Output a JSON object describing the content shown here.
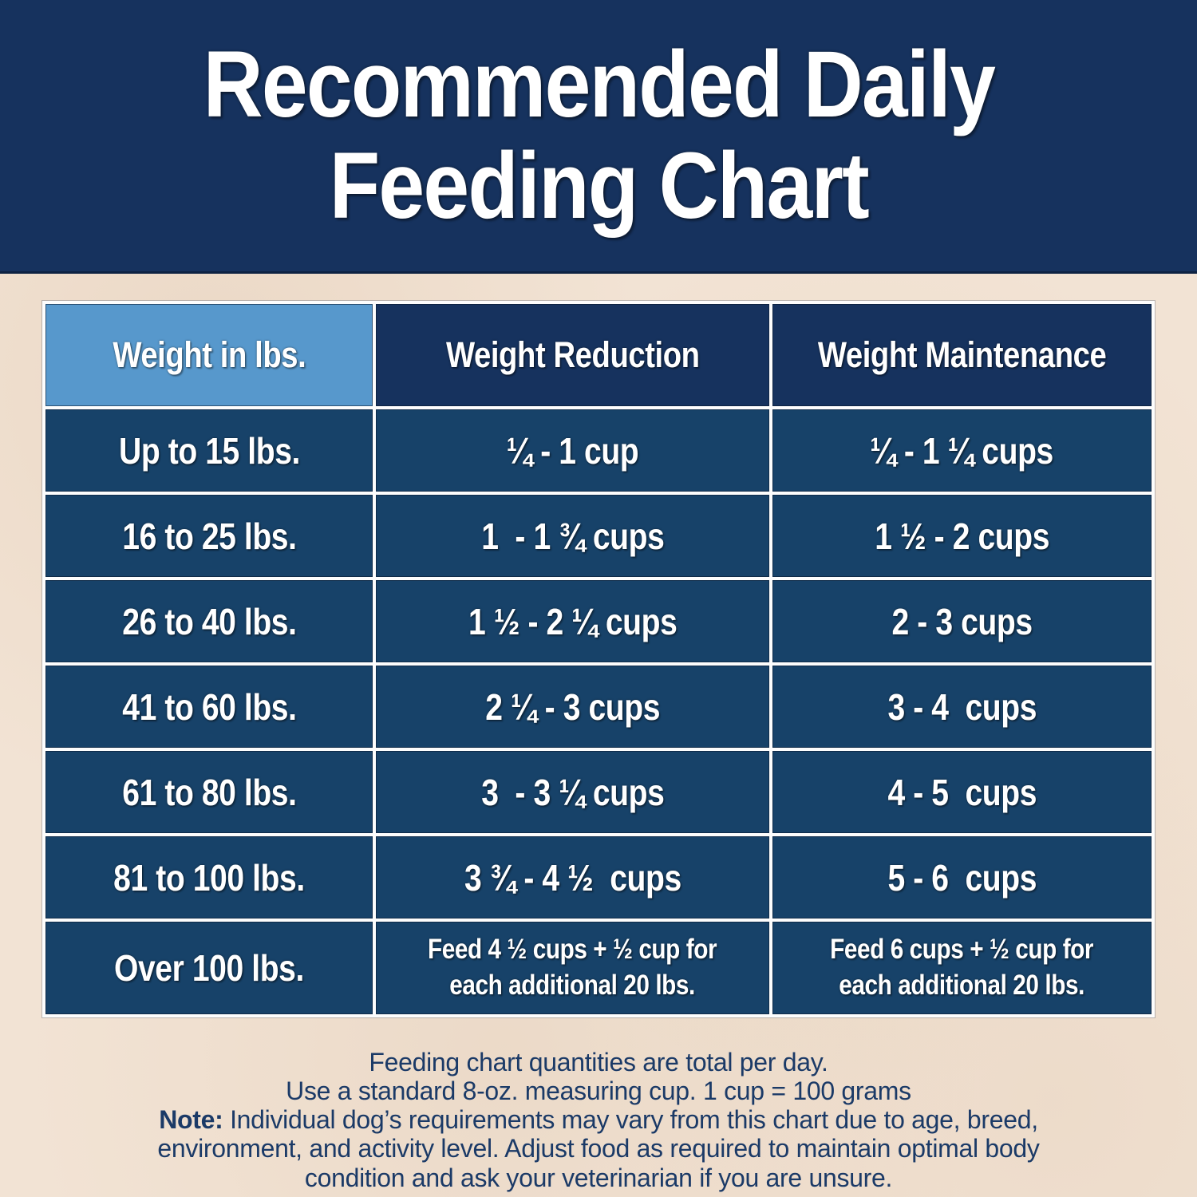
{
  "header": {
    "title_line1": "Recommended Daily",
    "title_line2": "Feeding Chart"
  },
  "chart_data": {
    "type": "table",
    "title": "Recommended Daily Feeding Chart",
    "columns": [
      "Weight in lbs.",
      "Weight Reduction",
      "Weight Maintenance"
    ],
    "rows": [
      [
        "Up to 15 lbs.",
        "¼ - 1 cup",
        "¼ - 1 ¼ cups"
      ],
      [
        "16 to 25 lbs.",
        "1  - 1 ¾ cups",
        "1 ½ - 2 cups"
      ],
      [
        "26 to 40 lbs.",
        "1 ½ - 2 ¼ cups",
        "2 - 3 cups"
      ],
      [
        "41 to 60 lbs.",
        "2 ¼ - 3 cups",
        "3 - 4  cups"
      ],
      [
        "61 to 80 lbs.",
        "3  - 3 ¼ cups",
        "4 - 5  cups"
      ],
      [
        "81 to 100 lbs.",
        "3 ¾ - 4 ½  cups",
        "5 - 6  cups"
      ],
      [
        "Over 100 lbs.",
        "Feed 4 ½ cups + ½ cup for\neach additional 20 lbs.",
        "Feed 6 cups + ½ cup for\neach additional 20 lbs."
      ]
    ],
    "layout": {
      "grid": "white 4px gridlines",
      "legend": "none"
    }
  },
  "footer": {
    "line1": "Feeding chart quantities are total per day.",
    "line2": "Use a standard 8-oz. measuring cup. 1 cup = 100 grams",
    "note_label": "Note:",
    "note_text": " Individual dog’s requirements may vary from this chart due to age, breed,\nenvironment, and activity level. Adjust food as required to maintain optimal body\ncondition and ask your veterinarian if you are unsure."
  },
  "colors": {
    "banner_navy": "#16325e",
    "header_cell_navy": "#16325e",
    "data_cell_navy": "#174269",
    "accent_light_blue": "#5798cc",
    "background_beige": "#f2e3d4",
    "table_grid_white": "#fdfdfd",
    "text_white": "#ffffff",
    "footer_text_navy": "#1b3a67"
  }
}
